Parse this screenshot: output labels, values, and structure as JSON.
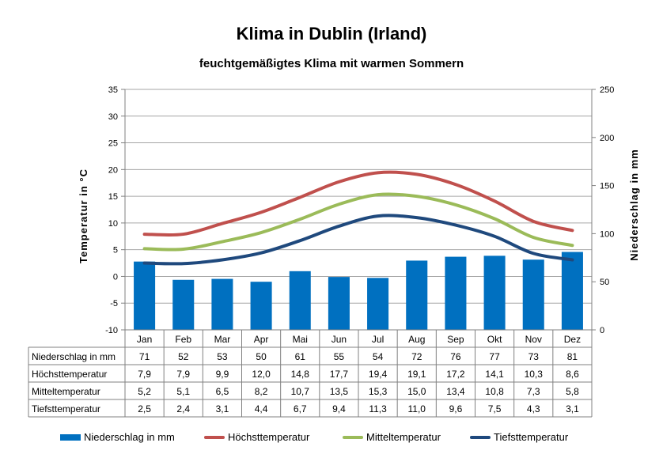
{
  "title": "Klima in Dublin (Irland)",
  "subtitle": "feuchtgemäßigtes Klima mit warmen Sommern",
  "chart_data": {
    "type": "bar",
    "categories": [
      "Jan",
      "Feb",
      "Mar",
      "Apr",
      "Mai",
      "Jun",
      "Jul",
      "Aug",
      "Sep",
      "Okt",
      "Nov",
      "Dez"
    ],
    "y_left": {
      "label": "Temperatur in °C",
      "min": -10,
      "max": 35,
      "ticks": [
        -10,
        -5,
        0,
        5,
        10,
        15,
        20,
        25,
        30,
        35
      ]
    },
    "y_right": {
      "label": "Niederschlag in mm",
      "min": 0,
      "max": 250,
      "ticks": [
        0,
        50,
        100,
        150,
        200,
        250
      ]
    },
    "grid": true,
    "legend_position": "bottom",
    "series": [
      {
        "name": "Niederschlag in mm",
        "type": "bar",
        "axis": "right",
        "color": "#0070c0",
        "values": [
          71,
          52,
          53,
          50,
          61,
          55,
          54,
          72,
          76,
          77,
          73,
          81
        ],
        "labels": [
          "71",
          "52",
          "53",
          "50",
          "61",
          "55",
          "54",
          "72",
          "76",
          "77",
          "73",
          "81"
        ]
      },
      {
        "name": "Höchsttemperatur",
        "type": "line",
        "axis": "left",
        "color": "#c0504d",
        "values": [
          7.9,
          7.9,
          9.9,
          12.0,
          14.8,
          17.7,
          19.4,
          19.1,
          17.2,
          14.1,
          10.3,
          8.6
        ],
        "labels": [
          "7,9",
          "7,9",
          "9,9",
          "12,0",
          "14,8",
          "17,7",
          "19,4",
          "19,1",
          "17,2",
          "14,1",
          "10,3",
          "8,6"
        ]
      },
      {
        "name": "Mitteltemperatur",
        "type": "line",
        "axis": "left",
        "color": "#9bbb59",
        "values": [
          5.2,
          5.1,
          6.5,
          8.2,
          10.7,
          13.5,
          15.3,
          15.0,
          13.4,
          10.8,
          7.3,
          5.8
        ],
        "labels": [
          "5,2",
          "5,1",
          "6,5",
          "8,2",
          "10,7",
          "13,5",
          "15,3",
          "15,0",
          "13,4",
          "10,8",
          "7,3",
          "5,8"
        ]
      },
      {
        "name": "Tiefsttemperatur",
        "type": "line",
        "axis": "left",
        "color": "#1f497d",
        "values": [
          2.5,
          2.4,
          3.1,
          4.4,
          6.7,
          9.4,
          11.3,
          11.0,
          9.6,
          7.5,
          4.3,
          3.1
        ],
        "labels": [
          "2,5",
          "2,4",
          "3,1",
          "4,4",
          "6,7",
          "9,4",
          "11,3",
          "11,0",
          "9,6",
          "7,5",
          "4,3",
          "3,1"
        ]
      }
    ]
  }
}
